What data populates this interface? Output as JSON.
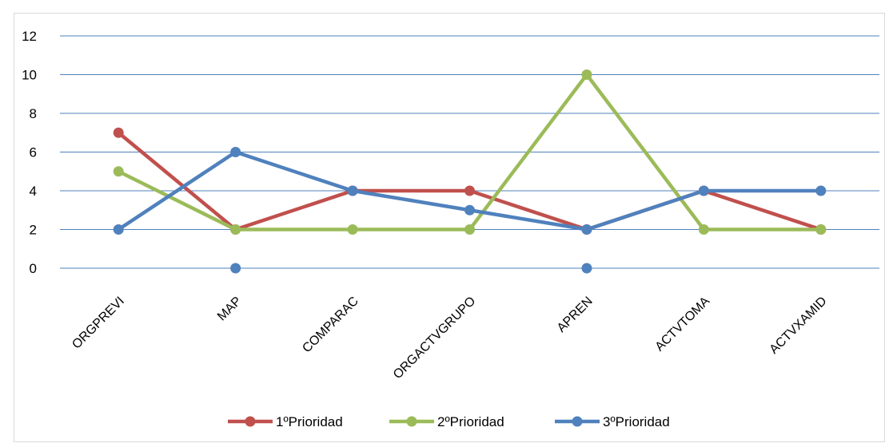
{
  "chart_data": {
    "type": "line",
    "categories": [
      "ORGPREVI",
      "MAP",
      "COMPARAC",
      "ORGACTVGRUPO",
      "APREN",
      "ACTVTOMA",
      "ACTVXAMID"
    ],
    "series": [
      {
        "name": "1ºPrioridad",
        "color": "#c0504d",
        "values": [
          7,
          2,
          4,
          4,
          2,
          4,
          2
        ]
      },
      {
        "name": "2ºPrioridad",
        "color": "#9bbb59",
        "values": [
          5,
          2,
          2,
          2,
          10,
          2,
          2
        ]
      },
      {
        "name": "3ºPrioridad",
        "color": "#4f81bd",
        "values": [
          2,
          6,
          4,
          3,
          2,
          4,
          4
        ],
        "points_only": [
          [
            1,
            0
          ],
          [
            4,
            0
          ]
        ]
      }
    ],
    "ylim": [
      0,
      12
    ],
    "yticks": [
      0,
      2,
      4,
      6,
      8,
      10,
      12
    ],
    "grid": true,
    "gridline_color": "#4f81bd",
    "legend_position": "bottom"
  }
}
